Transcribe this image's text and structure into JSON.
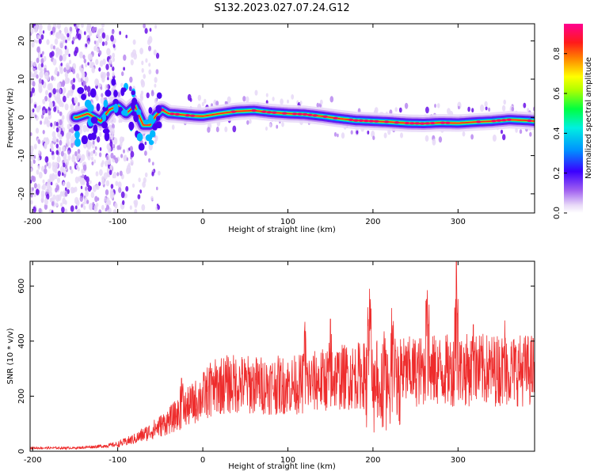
{
  "title": "S132.2023.027.07.24.G12",
  "chart_data": [
    {
      "type": "heatmap",
      "xlabel": "Height of straight line (km)",
      "ylabel": "Frequency (Hz)",
      "xlim": [
        -203,
        390
      ],
      "ylim": [
        -25,
        24.5
      ],
      "x_ticks": [
        -200,
        -100,
        0,
        100,
        200,
        300
      ],
      "y_ticks": [
        -20,
        -10,
        0,
        10,
        20
      ],
      "colorbar": {
        "label": "Normalized spectral amplitude",
        "range": [
          0.0,
          0.95
        ],
        "ticks": [
          0.0,
          0.2,
          0.4,
          0.6,
          0.8
        ],
        "colormap": [
          "#ffffff",
          "#e9dbf8",
          "#8a2be2",
          "#3a00ff",
          "#00ccff",
          "#00ff40",
          "#ffff00",
          "#ff2020",
          "#ff0080"
        ]
      },
      "ridge": {
        "x": [
          -148,
          -135,
          -120,
          -110,
          -100,
          -90,
          -80,
          -70,
          -62,
          -55,
          -48,
          -40,
          -30,
          -20,
          -10,
          0,
          20,
          40,
          60,
          80,
          100,
          120,
          140,
          160,
          180,
          200,
          220,
          240,
          260,
          280,
          300,
          320,
          340,
          360,
          380,
          390
        ],
        "y": [
          0,
          1,
          -1,
          2,
          3,
          1,
          3,
          -2,
          -2,
          0.5,
          2,
          1,
          0.8,
          0.6,
          0.4,
          0.3,
          1,
          1.6,
          1.8,
          1.3,
          1.0,
          0.8,
          0.3,
          -0.3,
          -0.8,
          -1.0,
          -1.2,
          -1.5,
          -1.6,
          -1.4,
          -1.5,
          -1.2,
          -1.0,
          -0.6,
          -0.8,
          -1.0
        ]
      }
    },
    {
      "type": "line",
      "xlabel": "Height of straight line (km)",
      "ylabel": "SNR (10 * v/v)",
      "xlim": [
        -203,
        390
      ],
      "ylim": [
        0,
        690
      ],
      "x_ticks": [
        -200,
        -100,
        0,
        100,
        200,
        300
      ],
      "y_ticks": [
        0,
        200,
        400,
        600
      ],
      "color": "#ee2c2c",
      "envelope": {
        "x": [
          -203,
          -150,
          -120,
          -100,
          -80,
          -60,
          -40,
          -20,
          0,
          10,
          20,
          40,
          60,
          80,
          100,
          120,
          150,
          200,
          250,
          300,
          350,
          390
        ],
        "y": [
          12,
          12,
          18,
          25,
          45,
          75,
          110,
          155,
          200,
          225,
          240,
          245,
          240,
          240,
          240,
          245,
          265,
          280,
          290,
          295,
          295,
          295
        ]
      },
      "spikes": [
        {
          "x": -25,
          "y": 265
        },
        {
          "x": 10,
          "y": 290
        },
        {
          "x": 120,
          "y": 470
        },
        {
          "x": 150,
          "y": 480
        },
        {
          "x": 196,
          "y": 590
        },
        {
          "x": 212,
          "y": 490
        },
        {
          "x": 222,
          "y": 520
        },
        {
          "x": 264,
          "y": 585
        },
        {
          "x": 298,
          "y": 690
        },
        {
          "x": 318,
          "y": 460
        },
        {
          "x": 355,
          "y": 475
        }
      ]
    }
  ]
}
